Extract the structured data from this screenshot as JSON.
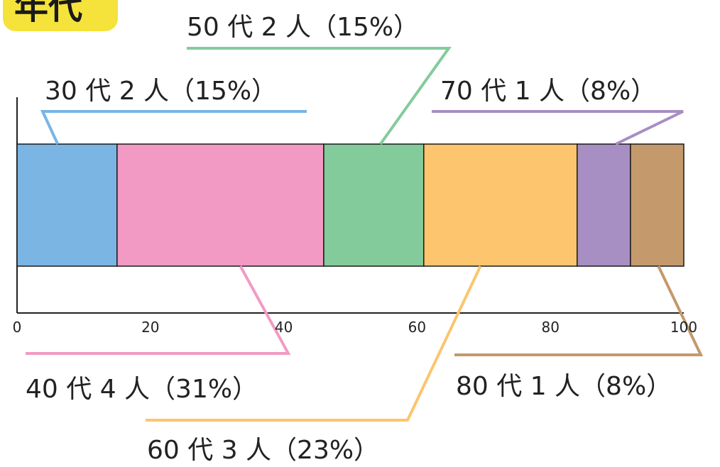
{
  "chart_data": {
    "type": "bar",
    "orientation": "horizontal-stacked",
    "title": "年代",
    "xlim": [
      0,
      100
    ],
    "xticks": [
      "0",
      "20",
      "40",
      "60",
      "80",
      "100"
    ],
    "segments": [
      {
        "category": "30代",
        "count": 2,
        "percent": 15,
        "label": "30 代 2 人（15%）",
        "color": "#7ab5e4"
      },
      {
        "category": "40代",
        "count": 4,
        "percent": 31,
        "label": "40 代 4 人（31%）",
        "color": "#f29ac3"
      },
      {
        "category": "50代",
        "count": 2,
        "percent": 15,
        "label": "50 代 2 人（15%）",
        "color": "#83cb9b"
      },
      {
        "category": "60代",
        "count": 3,
        "percent": 23,
        "label": "60 代 3 人（23%）",
        "color": "#fcc56e"
      },
      {
        "category": "70代",
        "count": 1,
        "percent": 8,
        "label": "70 代 1 人（8%）",
        "color": "#a78ec3"
      },
      {
        "category": "80代",
        "count": 1,
        "percent": 8,
        "label": "80 代 1 人（8%）",
        "color": "#c4996b"
      }
    ]
  }
}
